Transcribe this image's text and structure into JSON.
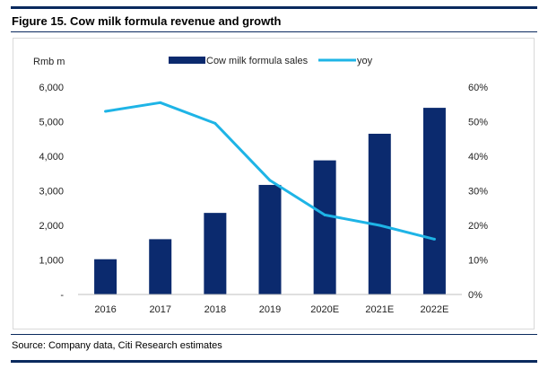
{
  "figure": {
    "title": "Figure 15. Cow milk formula revenue and growth",
    "source": "Source: Company data, Citi Research estimates"
  },
  "colors": {
    "bars": "#0b2a6e",
    "line": "#1eb4e6",
    "rule": "#0a2a5e"
  },
  "chart_data": {
    "type": "bar",
    "title": "",
    "categories": [
      "2016",
      "2017",
      "2018",
      "2019",
      "2020E",
      "2021E",
      "2022E"
    ],
    "series": [
      {
        "name": "Cow milk formula sales",
        "type": "bar",
        "axis": "left",
        "values": [
          1020,
          1600,
          2360,
          3170,
          3880,
          4650,
          5400
        ]
      },
      {
        "name": "yoy",
        "type": "line",
        "axis": "right",
        "values": [
          53,
          55.5,
          49.5,
          33,
          23,
          20,
          16
        ]
      }
    ],
    "ylabel": "Rmb m",
    "ylim": [
      0,
      6000
    ],
    "y_ticks": [
      "-",
      "1,000",
      "2,000",
      "3,000",
      "4,000",
      "5,000",
      "6,000"
    ],
    "y2lim": [
      0,
      60
    ],
    "y2_ticks": [
      "0%",
      "10%",
      "20%",
      "30%",
      "40%",
      "50%",
      "60%"
    ],
    "legend": "top-center",
    "grid": false
  }
}
